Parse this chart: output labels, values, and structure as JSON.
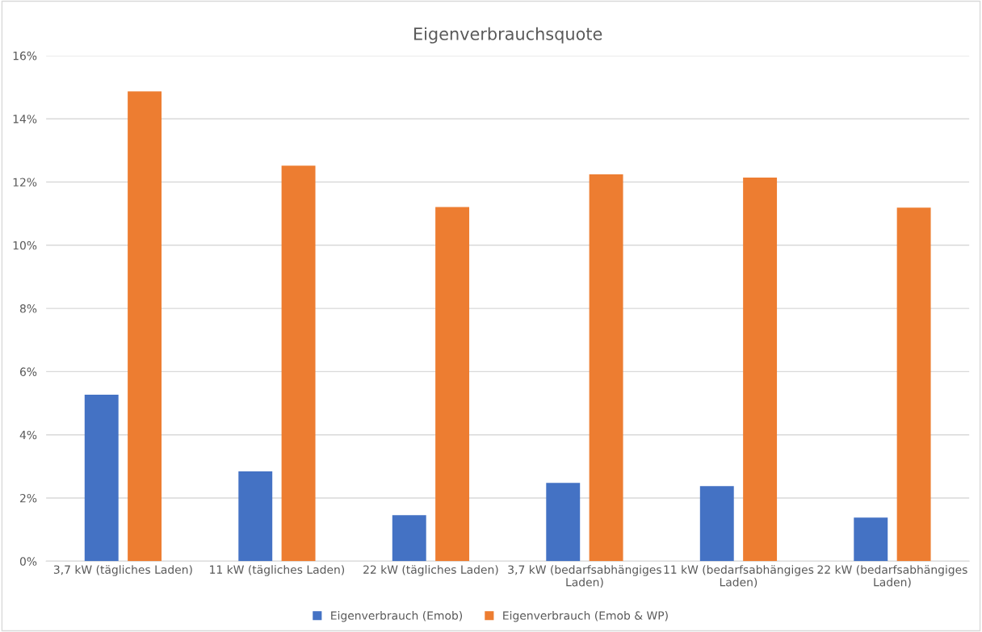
{
  "chart_data": {
    "type": "bar",
    "title": "Eigenverbrauchsquote",
    "categories": [
      "3,7 kW (tägliches Laden)",
      "11 kW (tägliches Laden)",
      "22 kW (tägliches Laden)",
      "3,7 kW (bedarfsabhängiges\nLaden)",
      "11 kW (bedarfsabhängiges\nLaden)",
      "22 kW (bedarfsabhängiges\nLaden)"
    ],
    "series": [
      {
        "name": "Eigenverbrauch (Emob)",
        "color": "#4472c4",
        "values": [
          5.27,
          2.84,
          1.46,
          2.48,
          2.38,
          1.38
        ]
      },
      {
        "name": "Eigenverbrauch (Emob & WP)",
        "color": "#ed7d31",
        "values": [
          14.87,
          12.52,
          11.21,
          12.24,
          12.14,
          11.19
        ]
      }
    ],
    "ylim": [
      0,
      16
    ],
    "yticks": [
      {
        "value": 0,
        "label": "0%"
      },
      {
        "value": 2,
        "label": "2%"
      },
      {
        "value": 4,
        "label": "4%"
      },
      {
        "value": 6,
        "label": "6%"
      },
      {
        "value": 8,
        "label": "8%"
      },
      {
        "value": 10,
        "label": "10%"
      },
      {
        "value": 12,
        "label": "12%"
      },
      {
        "value": 14,
        "label": "14%"
      },
      {
        "value": 16,
        "label": "16%"
      }
    ],
    "grid": "y",
    "legend": "bottom"
  }
}
